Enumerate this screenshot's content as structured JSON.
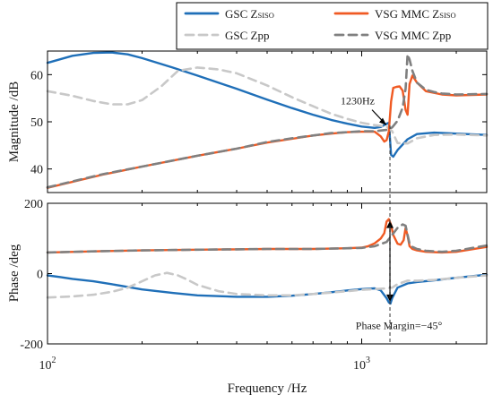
{
  "chart_data": [
    {
      "type": "line",
      "panel": "magnitude",
      "ylabel": "Magnitude /dB",
      "xlabel": "",
      "xscale": "log",
      "xlim": [
        100,
        2500
      ],
      "ylim": [
        35,
        65
      ],
      "yticks": [
        40,
        50,
        60
      ],
      "yticklabels": [
        "40",
        "50",
        "60"
      ],
      "annotations": [
        {
          "text": "1230Hz",
          "x": 1230,
          "y": 49.5
        }
      ],
      "series": [
        {
          "name": "GSC Z_SISO",
          "color": "#1f6fb8",
          "style": "solid",
          "x": [
            100,
            120,
            140,
            160,
            180,
            200,
            250,
            300,
            400,
            500,
            600,
            700,
            800,
            900,
            1000,
            1100,
            1150,
            1200,
            1220,
            1240,
            1260,
            1300,
            1400,
            1500,
            1700,
            2000,
            2500
          ],
          "y": [
            62.5,
            64.0,
            64.6,
            64.7,
            64.3,
            63.5,
            61.5,
            59.8,
            57.0,
            54.7,
            52.9,
            51.5,
            50.4,
            49.6,
            49.0,
            48.7,
            48.9,
            49.6,
            49.8,
            43.0,
            42.6,
            44.0,
            46.3,
            47.4,
            47.7,
            47.5,
            47.2
          ]
        },
        {
          "name": "GSC Zpp",
          "color": "#c8c8c8",
          "style": "dashed",
          "x": [
            100,
            120,
            140,
            160,
            180,
            200,
            230,
            260,
            300,
            350,
            400,
            500,
            600,
            700,
            800,
            900,
            1000,
            1100,
            1200,
            1250,
            1300,
            1400,
            1500,
            1700,
            2000,
            2500
          ],
          "y": [
            56.5,
            55.5,
            54.4,
            53.7,
            53.7,
            54.6,
            57.5,
            60.8,
            61.5,
            61.1,
            60.3,
            57.7,
            55.2,
            53.3,
            51.7,
            50.6,
            49.8,
            49.3,
            49.0,
            48.0,
            45.5,
            45.4,
            46.5,
            47.2,
            47.3,
            47.1
          ]
        },
        {
          "name": "VSG MMC Z_SISO",
          "color": "#f05a23",
          "style": "solid",
          "x": [
            100,
            150,
            200,
            300,
            400,
            500,
            600,
            700,
            800,
            900,
            1000,
            1100,
            1150,
            1180,
            1200,
            1220,
            1240,
            1260,
            1290,
            1320,
            1350,
            1380,
            1400,
            1420,
            1450,
            1500,
            1600,
            1800,
            2000,
            2500
          ],
          "y": [
            36.0,
            38.8,
            40.5,
            42.8,
            44.3,
            45.6,
            46.4,
            47.1,
            47.5,
            47.8,
            47.9,
            47.9,
            46.9,
            45.8,
            46.1,
            48.0,
            54.3,
            57.2,
            57.4,
            57.5,
            56.6,
            52.5,
            51.5,
            58.0,
            59.8,
            58.3,
            56.5,
            55.8,
            55.6,
            55.8
          ]
        },
        {
          "name": "VSG MMC Zpp",
          "color": "#808080",
          "style": "dashed",
          "x": [
            100,
            150,
            200,
            300,
            400,
            500,
            600,
            700,
            800,
            900,
            1000,
            1100,
            1200,
            1250,
            1300,
            1350,
            1380,
            1400,
            1420,
            1450,
            1500,
            1600,
            1700,
            1800,
            2000,
            2500
          ],
          "y": [
            36.1,
            38.9,
            40.5,
            42.8,
            44.3,
            45.7,
            46.5,
            47.1,
            47.6,
            47.8,
            48.0,
            48.0,
            48.3,
            48.8,
            50.2,
            53.0,
            57.0,
            64.3,
            63.2,
            60.8,
            58.3,
            56.8,
            56.3,
            56.0,
            55.8,
            55.9
          ]
        }
      ]
    },
    {
      "type": "line",
      "panel": "phase",
      "ylabel": "Phase /deg",
      "xlabel": "Frequency /Hz",
      "xscale": "log",
      "xlim": [
        100,
        2500
      ],
      "ylim": [
        -200,
        200
      ],
      "yticks": [
        -200,
        0,
        200
      ],
      "yticklabels": [
        "-200",
        "0",
        "200"
      ],
      "xticks": [
        100,
        1000
      ],
      "xticklabels": [
        {
          "base": "10",
          "exp": "2"
        },
        {
          "base": "10",
          "exp": "3"
        }
      ],
      "annotations": [
        {
          "text": "Phase Margin=−45°",
          "x": 1230,
          "y": -150
        }
      ],
      "series": [
        {
          "name": "GSC Z_SISO",
          "color": "#1f6fb8",
          "style": "solid",
          "x": [
            100,
            110,
            120,
            140,
            160,
            200,
            250,
            300,
            400,
            500,
            600,
            700,
            800,
            900,
            1000,
            1100,
            1150,
            1200,
            1220,
            1235,
            1250,
            1300,
            1400,
            1500,
            1700,
            2000,
            2500
          ],
          "y": [
            -5,
            -10,
            -15,
            -22,
            -30,
            -45,
            -55,
            -62,
            -66,
            -66,
            -63,
            -58,
            -53,
            -48,
            -44,
            -42,
            -48,
            -70,
            -82,
            -85,
            -70,
            -40,
            -28,
            -24,
            -19,
            -12,
            -3
          ]
        },
        {
          "name": "GSC Zpp",
          "color": "#c8c8c8",
          "style": "dashed",
          "x": [
            100,
            120,
            140,
            160,
            180,
            200,
            220,
            240,
            260,
            280,
            300,
            350,
            400,
            500,
            600,
            700,
            800,
            900,
            1000,
            1100,
            1200,
            1250,
            1300,
            1400,
            1500,
            1700,
            2000,
            2500
          ],
          "y": [
            -68,
            -65,
            -60,
            -52,
            -40,
            -22,
            -5,
            2,
            -5,
            -18,
            -32,
            -50,
            -58,
            -62,
            -62,
            -58,
            -54,
            -50,
            -46,
            -44,
            -42,
            -40,
            -30,
            -20,
            -20,
            -18,
            -12,
            -5
          ]
        },
        {
          "name": "VSG MMC Z_SISO",
          "color": "#f05a23",
          "style": "solid",
          "x": [
            100,
            150,
            200,
            300,
            400,
            500,
            600,
            700,
            800,
            900,
            1000,
            1050,
            1100,
            1150,
            1180,
            1200,
            1220,
            1240,
            1260,
            1300,
            1330,
            1360,
            1380,
            1400,
            1420,
            1450,
            1500,
            1600,
            1800,
            2000,
            2500
          ],
          "y": [
            60,
            64,
            66,
            68,
            69,
            70,
            70,
            70,
            71,
            72,
            74,
            78,
            86,
            100,
            115,
            148,
            155,
            138,
            110,
            85,
            82,
            95,
            130,
            108,
            78,
            70,
            66,
            62,
            60,
            62,
            76
          ]
        },
        {
          "name": "VSG MMC Zpp",
          "color": "#808080",
          "style": "dashed",
          "x": [
            100,
            150,
            200,
            300,
            400,
            500,
            600,
            700,
            800,
            900,
            1000,
            1100,
            1200,
            1250,
            1300,
            1350,
            1380,
            1400,
            1420,
            1450,
            1500,
            1600,
            1800,
            2000,
            2500
          ],
          "y": [
            60,
            64,
            66,
            68,
            69,
            70,
            70,
            70,
            71,
            72,
            73,
            78,
            90,
            110,
            130,
            140,
            136,
            110,
            85,
            76,
            70,
            65,
            62,
            65,
            80
          ]
        }
      ]
    }
  ],
  "legend": {
    "placement": "top",
    "entries": [
      {
        "main": "GSC Z",
        "sub": "SISO",
        "color": "#1f6fb8",
        "style": "solid"
      },
      {
        "main": "VSG MMC Z",
        "sub": "SISO",
        "color": "#f05a23",
        "style": "solid"
      },
      {
        "main": "GSC Zpp",
        "sub": "",
        "color": "#c8c8c8",
        "style": "dashed"
      },
      {
        "main": "VSG MMC Zpp",
        "sub": "",
        "color": "#808080",
        "style": "dashed"
      }
    ]
  },
  "marker_frequency": 1230
}
